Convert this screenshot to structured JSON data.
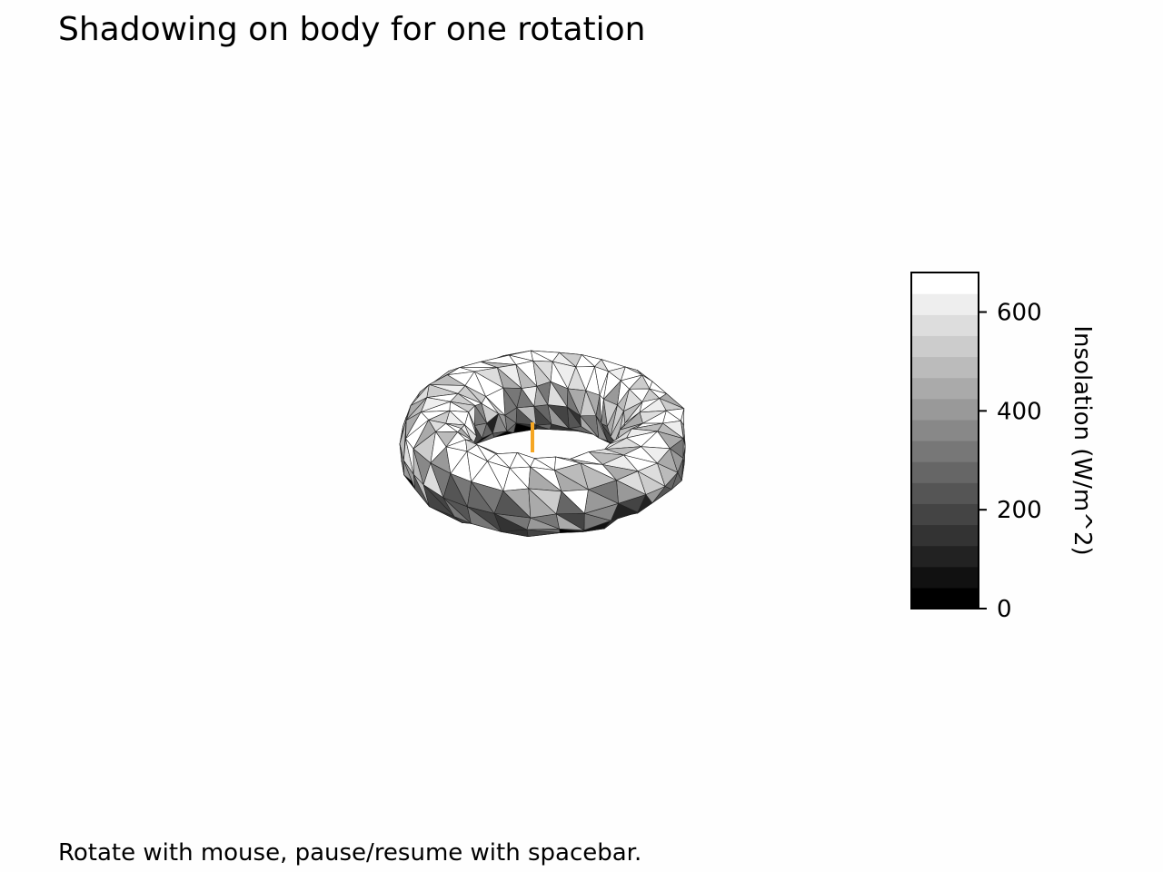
{
  "title": "Shadowing on body for one rotation",
  "footer": "Rotate with mouse, pause/resume with spacebar.",
  "chart_data": {
    "type": "3d-mesh",
    "title": "Shadowing on body for one rotation",
    "colormap": "gray",
    "sun_marker_color": "#f5a623",
    "colorbar": {
      "label": "Insolation (W/m^2)",
      "min": 0,
      "max": 680,
      "levels": 16,
      "ticks": [
        0,
        200,
        400,
        600
      ],
      "tick_labels": [
        "0",
        "200",
        "400",
        "600"
      ]
    }
  }
}
